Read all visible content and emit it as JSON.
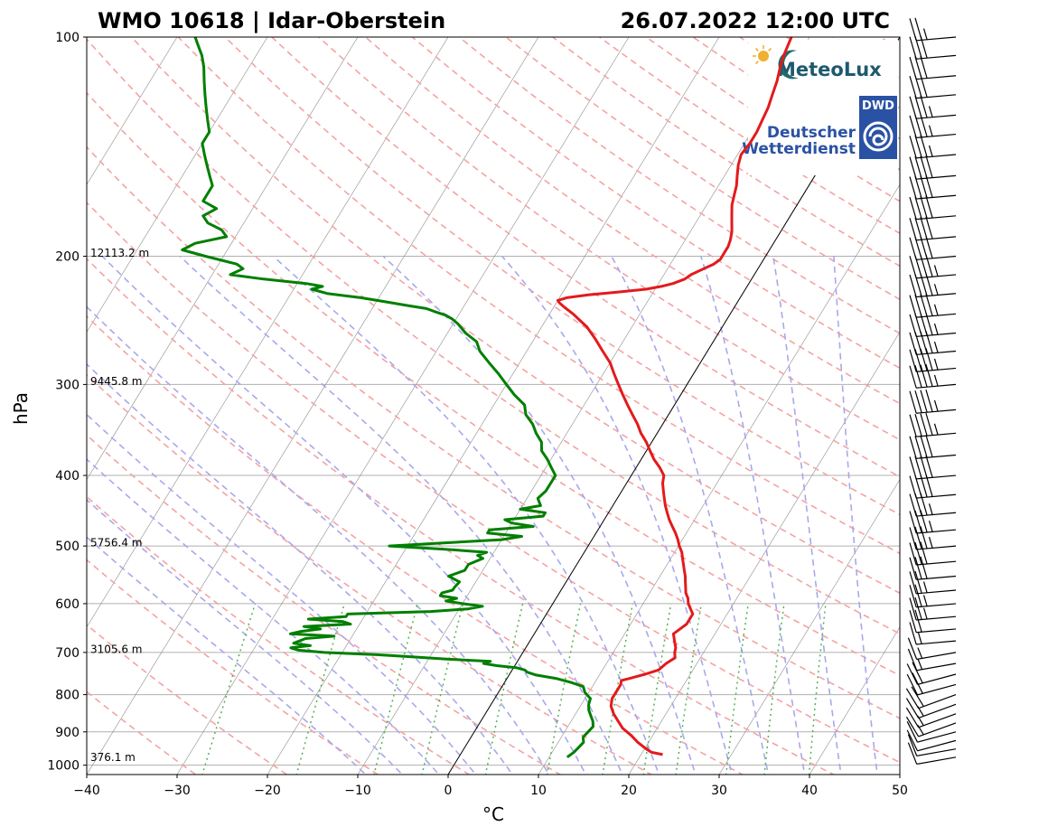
{
  "header": {
    "station": "WMO 10618 | Idar-Oberstein",
    "datetime": "26.07.2022 12:00 UTC"
  },
  "logos": {
    "meteolux": "MeteoLux",
    "dwd_badge": "DWD",
    "dwd_line1": "Deutscher",
    "dwd_line2": "Wetterdienst"
  },
  "colors": {
    "temperature": "#e31a1c",
    "dewpoint": "#007f00",
    "dry_adiabat": "#f4a3a3",
    "moist_adiabat": "#a8a8ec",
    "mixing_ratio": "#55b255",
    "isotherm": "#7f7f7f",
    "isobar": "#b0b0b0"
  },
  "chart_data": {
    "type": "line",
    "title": "WMO 10618 | Idar-Oberstein",
    "datetime": "26.07.2022 12:00 UTC",
    "xlabel": "°C",
    "ylabel": "hPa",
    "xlim": [
      -40,
      50
    ],
    "ylim": [
      1030,
      100
    ],
    "y_scale": "log",
    "skew": true,
    "grid": true,
    "x_ticks": [
      -40,
      -30,
      -20,
      -10,
      0,
      10,
      20,
      30,
      40,
      50
    ],
    "x_tick_labels": [
      "−40",
      "−30",
      "−20",
      "−10",
      "0",
      "10",
      "20",
      "30",
      "40",
      "50"
    ],
    "y_ticks": [
      100,
      200,
      300,
      400,
      500,
      600,
      700,
      800,
      900,
      1000
    ],
    "y_tick_labels": [
      "100",
      "200",
      "300",
      "400",
      "500",
      "600",
      "700",
      "800",
      "900",
      "1000"
    ],
    "height_labels": [
      {
        "p": 200,
        "text": "12113.2 m"
      },
      {
        "p": 300,
        "text": "9445.8 m"
      },
      {
        "p": 500,
        "text": "5756.4 m"
      },
      {
        "p": 700,
        "text": "3105.6 m"
      },
      {
        "p": 985,
        "text": "376.1 m"
      }
    ],
    "zero_isotherm_highlighted": true,
    "series": [
      {
        "key": "temperature",
        "p": [
          967,
          960,
          950,
          930,
          910,
          890,
          870,
          850,
          830,
          810,
          790,
          775,
          765,
          760,
          750,
          740,
          725,
          712,
          700,
          690,
          680,
          670,
          660,
          650,
          640,
          630,
          620,
          610,
          600,
          590,
          580,
          570,
          560,
          550,
          540,
          530,
          520,
          510,
          500,
          490,
          480,
          470,
          460,
          450,
          440,
          430,
          420,
          410,
          400,
          390,
          380,
          370,
          360,
          350,
          340,
          330,
          320,
          310,
          300,
          290,
          280,
          270,
          260,
          250,
          245,
          240,
          235,
          232,
          230,
          228,
          226,
          224,
          222,
          220,
          218,
          215,
          212,
          208,
          205,
          202,
          200,
          197,
          194,
          190,
          185,
          180,
          175,
          170,
          165,
          160,
          155,
          150,
          145,
          140,
          135,
          130,
          125,
          120,
          115,
          110,
          106,
          103,
          100
        ],
        "t": [
          22.4,
          21.0,
          20.2,
          18.8,
          17.6,
          16.2,
          15.2,
          14.2,
          13.4,
          13.0,
          13.0,
          13.0,
          12.8,
          13.6,
          15.0,
          16.2,
          16.6,
          17.2,
          16.8,
          16.6,
          16.2,
          15.8,
          15.4,
          15.8,
          16.2,
          16.2,
          16.2,
          15.6,
          15.0,
          14.6,
          14.0,
          13.6,
          13.2,
          12.8,
          12.3,
          11.8,
          11.3,
          10.8,
          10.1,
          9.5,
          8.8,
          8.0,
          7.2,
          6.5,
          5.8,
          5.2,
          4.6,
          4.0,
          3.6,
          2.6,
          1.4,
          0.4,
          -0.6,
          -1.8,
          -2.8,
          -4.0,
          -5.2,
          -6.4,
          -7.6,
          -8.8,
          -10.0,
          -11.6,
          -13.2,
          -15.0,
          -16.2,
          -17.4,
          -18.8,
          -19.6,
          -20.0,
          -19.2,
          -17.0,
          -14.0,
          -11.0,
          -9.5,
          -8.4,
          -7.4,
          -7.0,
          -6.0,
          -5.2,
          -4.8,
          -4.8,
          -4.8,
          -4.8,
          -5.0,
          -5.4,
          -6.0,
          -6.6,
          -7.2,
          -7.6,
          -8.0,
          -8.6,
          -9.2,
          -9.6,
          -9.4,
          -9.4,
          -9.6,
          -9.8,
          -10.2,
          -10.6,
          -11.2,
          -11.6,
          -11.8,
          -12.0
        ]
      },
      {
        "key": "dewpoint",
        "p": [
          975,
          960,
          945,
          930,
          915,
          900,
          885,
          870,
          855,
          840,
          825,
          810,
          795,
          780,
          770,
          760,
          752,
          745,
          740,
          735,
          730,
          725,
          720,
          715,
          710,
          705,
          700,
          695,
          690,
          685,
          680,
          670,
          665,
          660,
          655,
          650,
          645,
          640,
          635,
          630,
          625,
          620,
          615,
          610,
          605,
          600,
          595,
          590,
          585,
          580,
          575,
          570,
          560,
          550,
          540,
          530,
          520,
          515,
          510,
          505,
          500,
          495,
          490,
          485,
          480,
          475,
          470,
          465,
          460,
          455,
          450,
          445,
          440,
          430,
          420,
          410,
          400,
          390,
          380,
          370,
          360,
          350,
          340,
          330,
          320,
          310,
          300,
          290,
          280,
          270,
          262,
          255,
          248,
          244,
          241,
          238,
          236,
          234,
          231,
          228,
          225,
          222,
          220,
          218,
          215,
          212,
          208,
          205,
          200,
          196,
          192,
          188,
          184,
          180,
          176,
          172,
          168,
          164,
          160,
          155,
          150,
          145,
          140,
          135,
          130,
          125,
          120,
          115,
          110,
          106,
          103,
          100
        ],
        "td": [
          12.0,
          12.4,
          12.6,
          12.8,
          12.4,
          12.6,
          12.8,
          12.4,
          11.8,
          11.2,
          10.8,
          10.6,
          9.6,
          9.0,
          7.4,
          5.4,
          3.0,
          1.8,
          1.4,
          0.4,
          -2.0,
          -3.6,
          -3.0,
          -8.0,
          -12.0,
          -16.0,
          -22.0,
          -25.0,
          -26.0,
          -24.0,
          -26.0,
          -25.0,
          -22.0,
          -27.0,
          -26.0,
          -24.0,
          -26.0,
          -21.0,
          -22.0,
          -26.0,
          -22.0,
          -22.0,
          -13.0,
          -9.0,
          -7.6,
          -10.0,
          -12.0,
          -11.0,
          -13.0,
          -13.0,
          -12.0,
          -12.0,
          -11.8,
          -13.4,
          -12.0,
          -12.0,
          -10.8,
          -11.6,
          -10.8,
          -15.8,
          -22.0,
          -16.0,
          -10.0,
          -8.0,
          -12.0,
          -12.0,
          -7.4,
          -10.0,
          -11.0,
          -7.0,
          -7.0,
          -10.0,
          -8.0,
          -8.8,
          -8.4,
          -8.4,
          -8.4,
          -9.4,
          -10.4,
          -11.6,
          -12.2,
          -13.4,
          -14.4,
          -15.8,
          -16.6,
          -18.4,
          -20.0,
          -21.6,
          -23.4,
          -25.2,
          -26.2,
          -28.0,
          -29.4,
          -30.4,
          -31.4,
          -33.0,
          -34.0,
          -36.0,
          -39.0,
          -42.0,
          -46.0,
          -48.0,
          -47.0,
          -49.0,
          -54.0,
          -58.0,
          -57.0,
          -58.0,
          -62.0,
          -65.0,
          -64.0,
          -61.0,
          -62.0,
          -64.0,
          -65.0,
          -64.0,
          -66.0,
          -66.0,
          -66.0,
          -67.0,
          -68.0,
          -69.0,
          -70.0,
          -70.0,
          -71.0,
          -72.0,
          -73.0,
          -74.0,
          -75.0,
          -76.0,
          -77.0,
          -78.0
        ]
      }
    ],
    "wind_profile": {
      "p": [
        975,
        950,
        925,
        900,
        875,
        850,
        825,
        800,
        775,
        750,
        725,
        700,
        675,
        650,
        625,
        600,
        575,
        550,
        525,
        500,
        475,
        450,
        425,
        400,
        375,
        350,
        325,
        300,
        285,
        270,
        255,
        240,
        225,
        212,
        200,
        188,
        176,
        165,
        155,
        145,
        136,
        128,
        120,
        113,
        106,
        100
      ],
      "speed_kt": [
        10,
        10,
        10,
        10,
        15,
        15,
        15,
        20,
        20,
        20,
        15,
        15,
        15,
        20,
        25,
        25,
        25,
        30,
        30,
        35,
        35,
        35,
        40,
        40,
        40,
        45,
        45,
        45,
        45,
        45,
        45,
        45,
        45,
        45,
        40,
        40,
        40,
        40,
        40,
        35,
        35,
        35,
        30,
        30,
        30,
        25
      ],
      "dir_deg": [
        260,
        260,
        255,
        255,
        250,
        250,
        250,
        250,
        255,
        255,
        260,
        260,
        265,
        265,
        265,
        265,
        265,
        265,
        265,
        265,
        265,
        265,
        265,
        265,
        265,
        265,
        265,
        265,
        265,
        265,
        265,
        265,
        265,
        265,
        265,
        265,
        265,
        265,
        265,
        265,
        265,
        265,
        265,
        265,
        265,
        265
      ]
    }
  }
}
